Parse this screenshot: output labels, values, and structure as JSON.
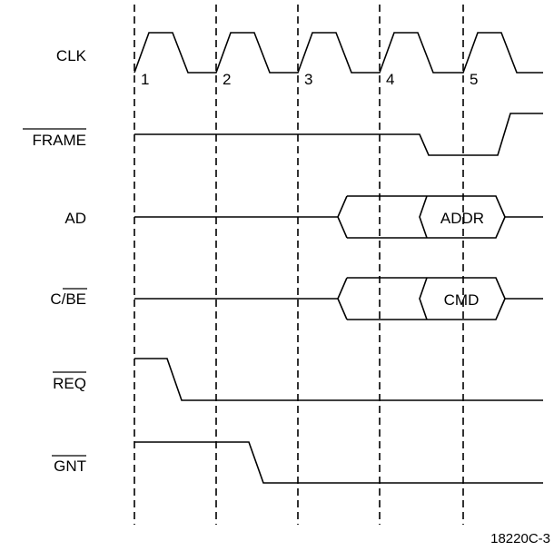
{
  "signals": {
    "clk": "CLK",
    "frame": "FRAME",
    "ad": "AD",
    "cbe_prefix": "C/",
    "cbe_bar": "BE",
    "req": "REQ",
    "gnt": "GNT"
  },
  "clock_cycles": [
    "1",
    "2",
    "3",
    "4",
    "5"
  ],
  "bus_values": {
    "ad": "ADDR",
    "cbe": "CMD"
  },
  "figure_id": "18220C-3"
}
